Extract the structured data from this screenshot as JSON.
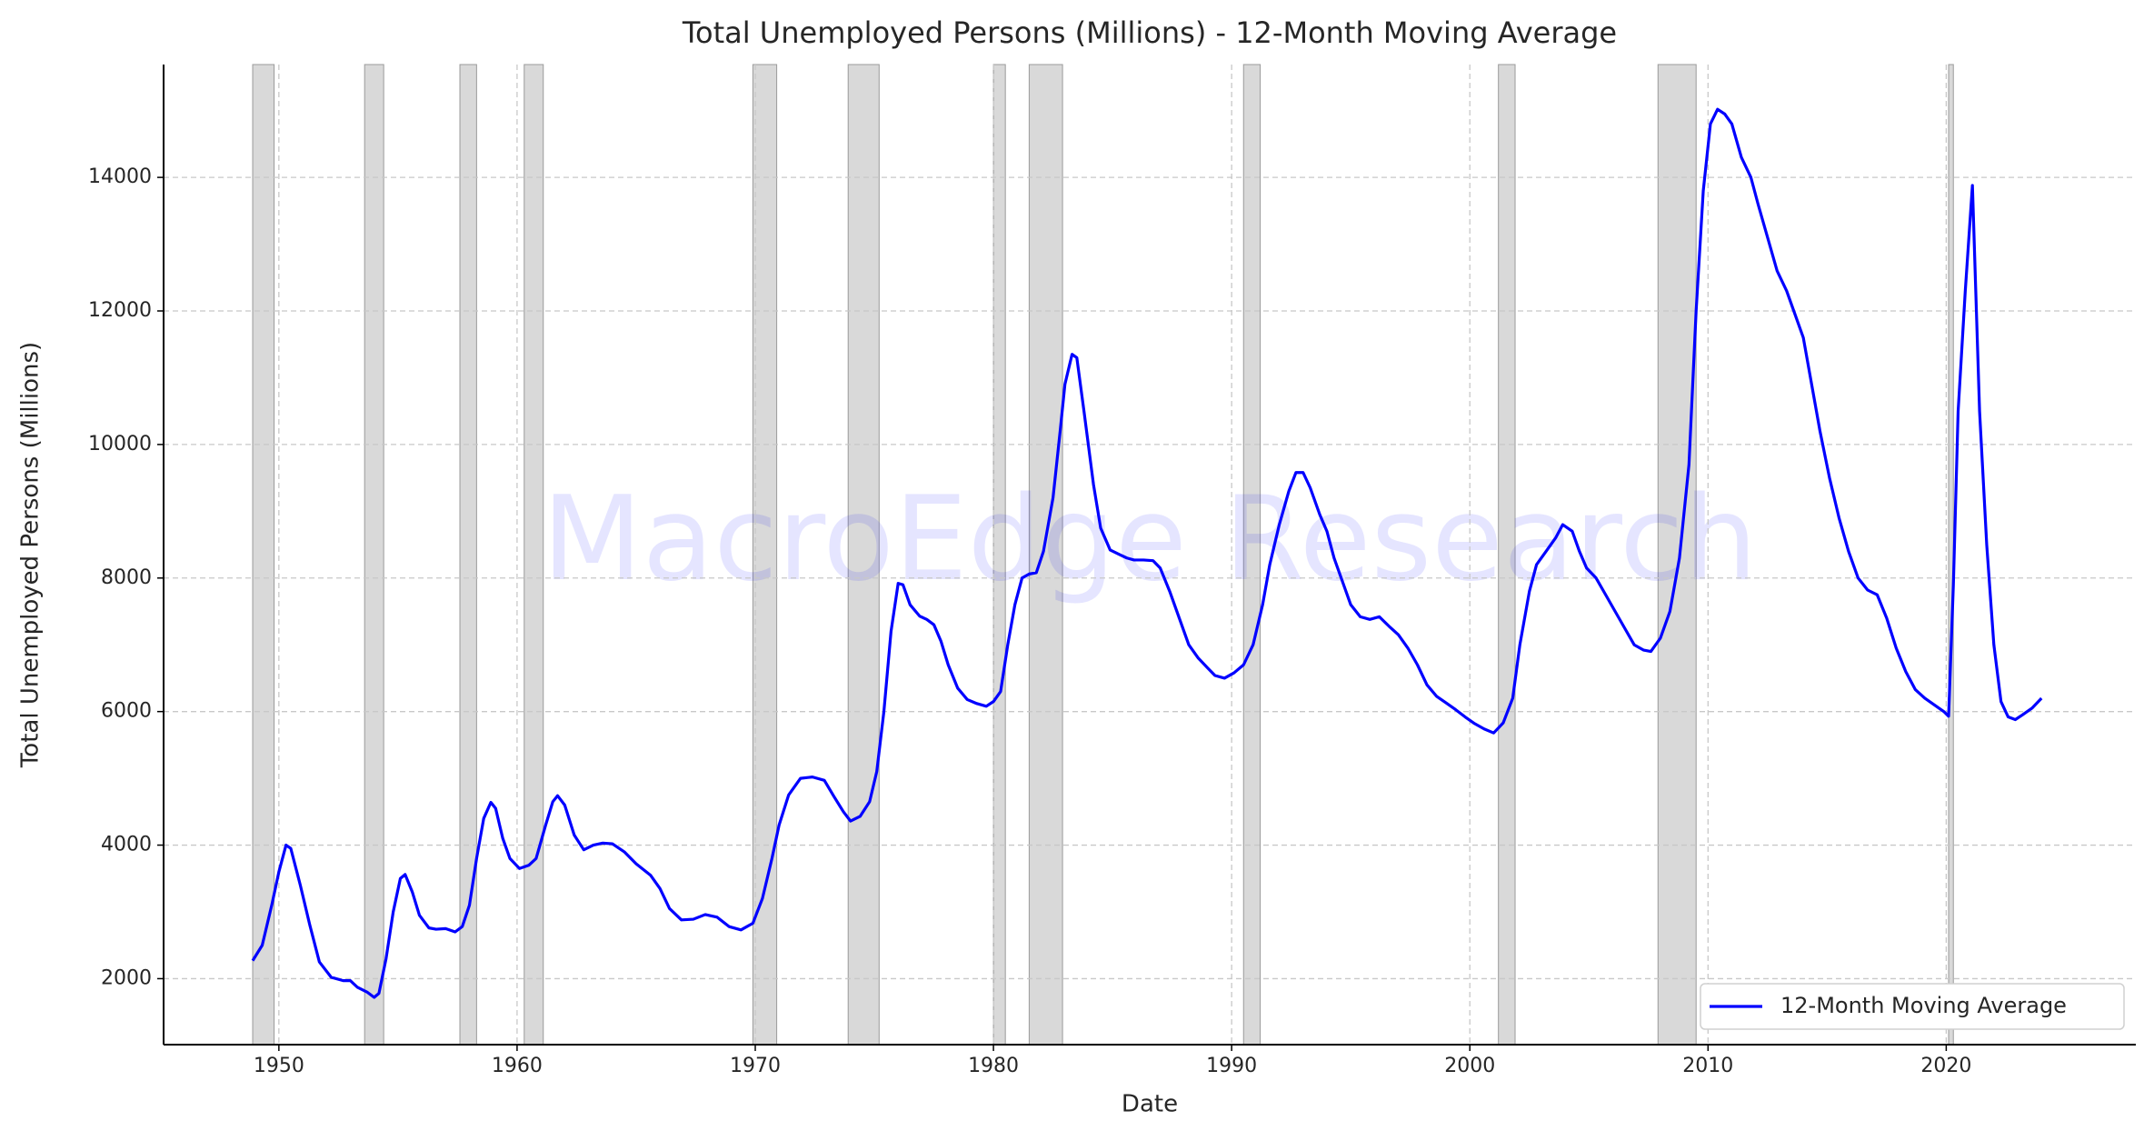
{
  "chart_data": {
    "type": "line",
    "title": "Total Unemployed Persons (Millions) - 12-Month Moving Average",
    "x_label": "Date",
    "y_label": "Total Unemployed Persons (Millions)",
    "watermark": "MacroEdge Research",
    "xlim": [
      1945.16,
      2027.96
    ],
    "ylim": [
      1012,
      15690
    ],
    "xticks": [
      1950,
      1960,
      1970,
      1980,
      1990,
      2000,
      2010,
      2020
    ],
    "yticks": [
      2000,
      4000,
      6000,
      8000,
      10000,
      12000,
      14000
    ],
    "grid": true,
    "legend": "lower right",
    "recessions": [
      [
        1948.9,
        1949.8
      ],
      [
        1953.6,
        1954.4
      ],
      [
        1957.6,
        1958.3
      ],
      [
        1960.3,
        1961.1
      ],
      [
        1969.9,
        1970.9
      ],
      [
        1973.9,
        1975.2
      ],
      [
        1980.0,
        1980.5
      ],
      [
        1981.5,
        1982.9
      ],
      [
        1990.5,
        1991.2
      ],
      [
        2001.2,
        2001.9
      ],
      [
        2007.9,
        2009.5
      ],
      [
        2020.1,
        2020.3
      ]
    ],
    "recession_color": "#d9d9d9",
    "x": [
      1948.9,
      1949.3,
      1949.7,
      1950.0,
      1950.3,
      1950.5,
      1950.9,
      1951.3,
      1951.7,
      1952.2,
      1952.7,
      1953.0,
      1953.3,
      1953.7,
      1954.0,
      1954.2,
      1954.5,
      1954.8,
      1955.1,
      1955.3,
      1955.6,
      1955.9,
      1956.3,
      1956.6,
      1957.0,
      1957.4,
      1957.7,
      1958.0,
      1958.3,
      1958.6,
      1958.9,
      1959.1,
      1959.4,
      1959.7,
      1960.1,
      1960.5,
      1960.8,
      1961.2,
      1961.5,
      1961.7,
      1962.0,
      1962.4,
      1962.8,
      1963.2,
      1963.6,
      1964.0,
      1964.5,
      1965.0,
      1965.6,
      1966.0,
      1966.4,
      1966.9,
      1967.4,
      1967.9,
      1968.4,
      1968.9,
      1969.4,
      1969.9,
      1970.3,
      1970.7,
      1971.0,
      1971.4,
      1971.9,
      1972.4,
      1972.9,
      1973.3,
      1973.7,
      1974.0,
      1974.4,
      1974.8,
      1975.1,
      1975.4,
      1975.7,
      1976.0,
      1976.2,
      1976.5,
      1976.9,
      1977.2,
      1977.5,
      1977.8,
      1978.1,
      1978.5,
      1978.9,
      1979.3,
      1979.7,
      1980.0,
      1980.3,
      1980.6,
      1980.9,
      1981.2,
      1981.5,
      1981.8,
      1982.1,
      1982.5,
      1982.8,
      1983.0,
      1983.3,
      1983.5,
      1983.8,
      1984.2,
      1984.5,
      1984.9,
      1985.3,
      1985.6,
      1985.9,
      1986.3,
      1986.7,
      1987.0,
      1987.4,
      1987.8,
      1988.2,
      1988.6,
      1989.0,
      1989.3,
      1989.7,
      1990.1,
      1990.5,
      1990.9,
      1991.3,
      1991.6,
      1992.0,
      1992.4,
      1992.7,
      1993.0,
      1993.3,
      1993.7,
      1994.0,
      1994.3,
      1994.7,
      1995.0,
      1995.4,
      1995.8,
      1996.2,
      1996.6,
      1997.0,
      1997.4,
      1997.8,
      1998.2,
      1998.6,
      1999.0,
      1999.4,
      1999.8,
      2000.2,
      2000.6,
      2001.0,
      2001.4,
      2001.8,
      2002.1,
      2002.5,
      2002.8,
      2003.2,
      2003.6,
      2003.9,
      2004.3,
      2004.6,
      2004.9,
      2005.3,
      2005.7,
      2006.1,
      2006.5,
      2006.9,
      2007.3,
      2007.6,
      2008.0,
      2008.4,
      2008.8,
      2009.2,
      2009.5,
      2009.8,
      2010.1,
      2010.4,
      2010.7,
      2011.0,
      2011.4,
      2011.8,
      2012.1,
      2012.5,
      2012.9,
      2013.3,
      2013.7,
      2014.0,
      2014.3,
      2014.7,
      2015.1,
      2015.5,
      2015.9,
      2016.3,
      2016.7,
      2017.1,
      2017.5,
      2017.9,
      2018.3,
      2018.7,
      2019.1,
      2019.5,
      2019.9,
      2020.1,
      2020.3,
      2020.5,
      2020.8,
      2021.1,
      2021.4,
      2021.7,
      2022.0,
      2022.3,
      2022.6,
      2022.9,
      2023.2,
      2023.6,
      2024.0
    ],
    "series": [
      {
        "name": "12-Month Moving Average",
        "color": "#0000ff",
        "values": [
          2270,
          2500,
          3100,
          3600,
          4000,
          3950,
          3400,
          2800,
          2250,
          2020,
          1970,
          1970,
          1870,
          1800,
          1720,
          1780,
          2300,
          3000,
          3500,
          3560,
          3300,
          2950,
          2760,
          2740,
          2750,
          2700,
          2780,
          3100,
          3800,
          4400,
          4640,
          4550,
          4100,
          3800,
          3650,
          3700,
          3800,
          4300,
          4650,
          4740,
          4600,
          4150,
          3930,
          4000,
          4030,
          4020,
          3900,
          3720,
          3550,
          3350,
          3050,
          2880,
          2890,
          2960,
          2920,
          2780,
          2730,
          2830,
          3200,
          3800,
          4300,
          4750,
          5000,
          5020,
          4970,
          4730,
          4500,
          4360,
          4430,
          4650,
          5100,
          6000,
          7200,
          7920,
          7900,
          7600,
          7430,
          7380,
          7300,
          7050,
          6700,
          6350,
          6180,
          6120,
          6080,
          6150,
          6300,
          7000,
          7600,
          8000,
          8060,
          8080,
          8400,
          9200,
          10200,
          10900,
          11350,
          11300,
          10500,
          9400,
          8750,
          8420,
          8350,
          8300,
          8270,
          8270,
          8260,
          8150,
          7800,
          7400,
          7000,
          6800,
          6650,
          6540,
          6500,
          6580,
          6700,
          7000,
          7600,
          8200,
          8800,
          9300,
          9580,
          9580,
          9350,
          8950,
          8700,
          8300,
          7900,
          7600,
          7420,
          7380,
          7420,
          7280,
          7150,
          6950,
          6700,
          6400,
          6230,
          6130,
          6030,
          5920,
          5820,
          5740,
          5680,
          5830,
          6200,
          7000,
          7800,
          8200,
          8400,
          8600,
          8800,
          8700,
          8400,
          8150,
          8000,
          7750,
          7500,
          7250,
          7000,
          6920,
          6900,
          7100,
          7500,
          8300,
          9700,
          12000,
          13800,
          14800,
          15020,
          14950,
          14800,
          14300,
          14000,
          13600,
          13100,
          12600,
          12300,
          11900,
          11600,
          11000,
          10200,
          9500,
          8900,
          8400,
          8000,
          7820,
          7750,
          7400,
          6950,
          6600,
          6330,
          6200,
          6100,
          6000,
          5930,
          7900,
          10500,
          12300,
          13880,
          10500,
          8500,
          7000,
          6150,
          5920,
          5880,
          5950,
          6050,
          6200
        ]
      }
    ]
  }
}
